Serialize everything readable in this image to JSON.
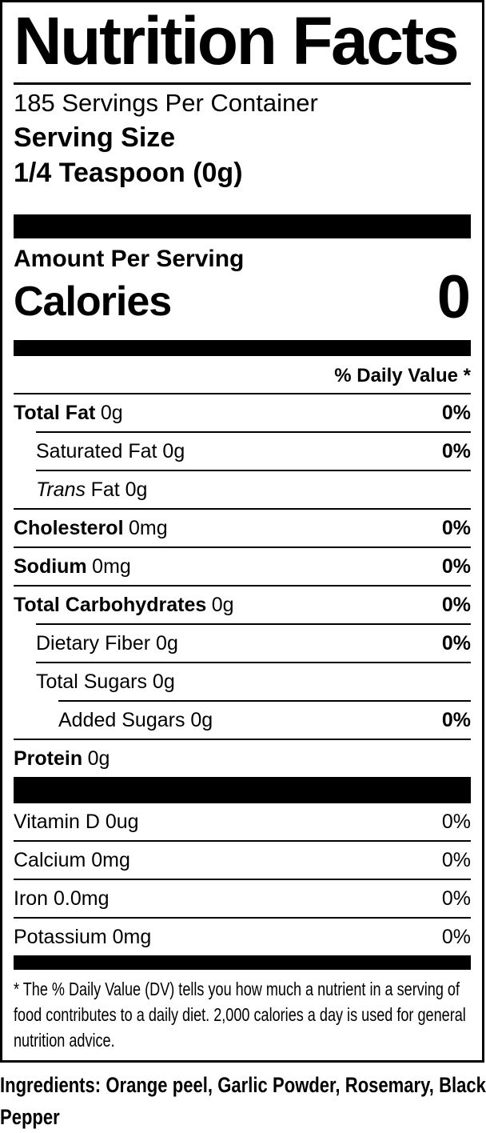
{
  "colors": {
    "ink": "#000000",
    "paper": "#ffffff"
  },
  "label": {
    "title": "Nutrition Facts",
    "servings_per_container": "185 Servings Per Container",
    "serving_size": {
      "label": "Serving Size",
      "value": "1/4 Teaspoon (0g)"
    },
    "amount_per_serving": "Amount Per Serving",
    "calories": {
      "label": "Calories",
      "value": "0"
    },
    "daily_value_header": "% Daily Value *",
    "nutrients": [
      {
        "bold": "Total Fat",
        "rest": "0g",
        "dv": "0%"
      },
      {
        "rest": "Saturated Fat 0g",
        "dv": "0%"
      },
      {
        "italic": "Trans",
        "rest": "Fat 0g"
      },
      {
        "bold": "Cholesterol",
        "rest": "0mg",
        "dv": "0%"
      },
      {
        "bold": "Sodium",
        "rest": "0mg",
        "dv": "0%"
      },
      {
        "bold": "Total Carbohydrates",
        "rest": "0g",
        "dv": "0%"
      },
      {
        "rest": "Dietary Fiber 0g",
        "dv": "0%"
      },
      {
        "rest": "Total Sugars 0g"
      },
      {
        "rest": "Added Sugars 0g",
        "dv": "0%"
      },
      {
        "bold": "Protein",
        "rest": "0g"
      }
    ],
    "micronutrients": [
      {
        "rest": "Vitamin D 0ug",
        "dv": "0%"
      },
      {
        "rest": "Calcium 0mg",
        "dv": "0%"
      },
      {
        "rest": "Iron 0.0mg",
        "dv": "0%"
      },
      {
        "rest": "Potassium 0mg",
        "dv": "0%"
      }
    ],
    "footnote": "* The % Daily Value (DV) tells you how much a nutrient in a serving of food contributes to a daily diet. 2,000 calories a day is used for general nutrition advice.",
    "ingredients": "Ingredients: Orange peel, Garlic Powder, Rosemary, Black Pepper"
  }
}
